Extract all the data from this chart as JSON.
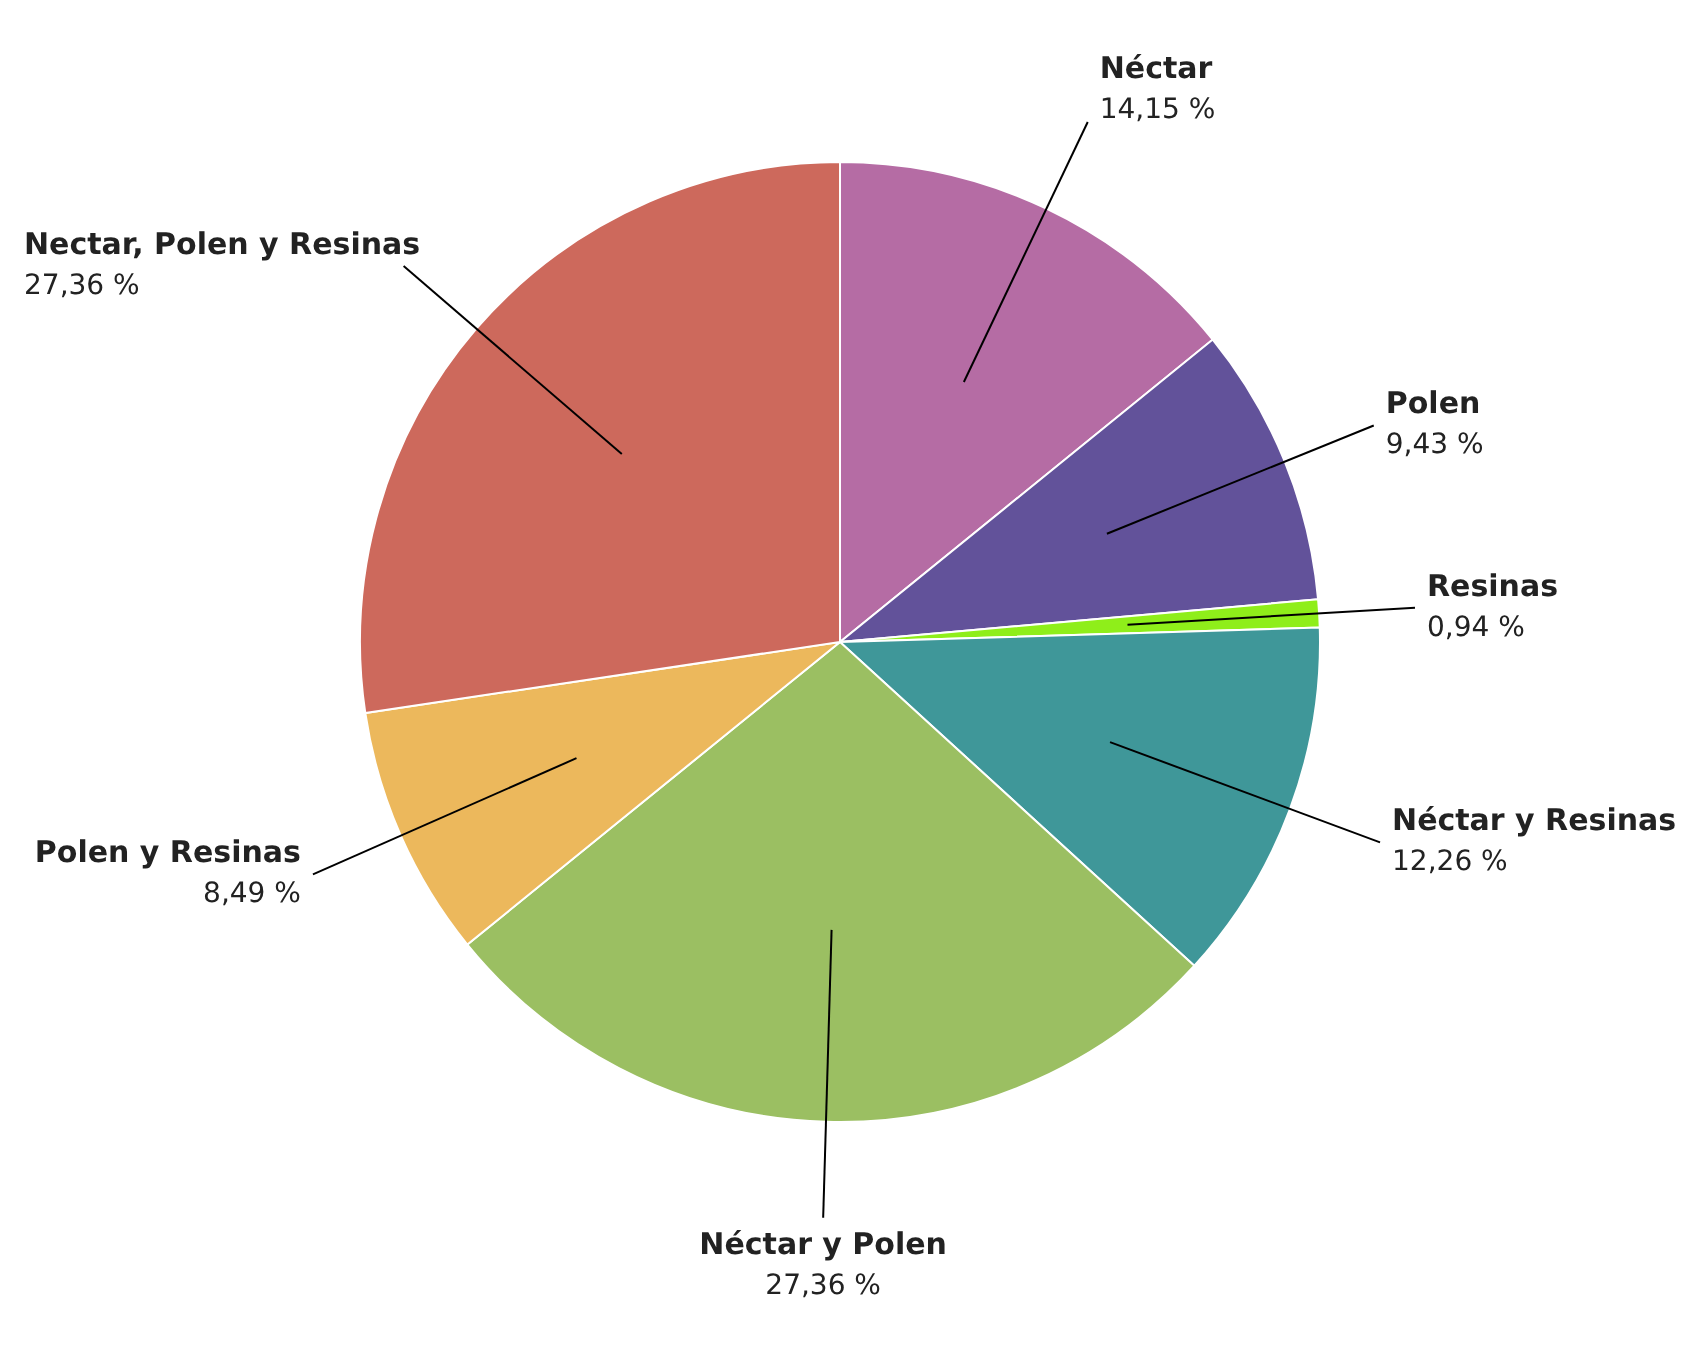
{
  "chart_data": {
    "type": "pie",
    "categories": [
      "Néctar",
      "Polen",
      "Resinas",
      "Néctar y Resinas",
      "Néctar y Polen",
      "Polen y Resinas",
      "Nectar, Polen y Resinas"
    ],
    "values": [
      14.15,
      9.43,
      0.94,
      12.26,
      27.36,
      8.49,
      27.36
    ],
    "value_labels": [
      "14,15 %",
      "9,43 %",
      "0,94 %",
      "12,26 %",
      "27,36 %",
      "8,49 %",
      "27,36 %"
    ],
    "colors": [
      "#b56ca4",
      "#62529a",
      "#8fee1a",
      "#3f9799",
      "#9bbf62",
      "#ecb85c",
      "#cd695c"
    ]
  }
}
